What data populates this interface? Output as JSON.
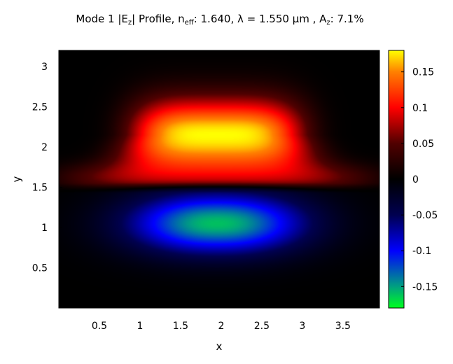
{
  "chart_data": {
    "type": "heatmap",
    "title": {
      "prefix": "Mode 1 |E",
      "prefix_sub": "z",
      "middle": "| Profile, n",
      "middle_sub": "eff",
      "suffix": ": 1.640, λ = 1.550 µm , A",
      "suffix_sub": "z",
      "end": ": 7.1%"
    },
    "xlabel": "x",
    "ylabel": "y",
    "xlim": [
      0,
      3.95
    ],
    "ylim": [
      0,
      3.2
    ],
    "xticks": [
      0.5,
      1,
      1.5,
      2,
      2.5,
      3,
      3.5
    ],
    "xtick_labels": [
      "0.5",
      "1",
      "1.5",
      "2",
      "2.5",
      "3",
      "3.5"
    ],
    "yticks": [
      0.5,
      1,
      1.5,
      2,
      2.5,
      3
    ],
    "ytick_labels": [
      "0.5",
      "1",
      "1.5",
      "2",
      "2.5",
      "3"
    ],
    "colorbar": {
      "range": [
        -0.18,
        0.18
      ],
      "ticks": [
        0.15,
        0.1,
        0.05,
        0,
        -0.05,
        -0.1,
        -0.15
      ],
      "tick_labels": [
        "0.15",
        "0.1",
        "0.05",
        "0",
        "-0.05",
        "-0.1",
        "-0.15"
      ],
      "colormap": [
        {
          "value": -0.18,
          "color": "#00ff20"
        },
        {
          "value": -0.15,
          "color": "#00a080"
        },
        {
          "value": -0.1,
          "color": "#0000ff"
        },
        {
          "value": -0.05,
          "color": "#000050"
        },
        {
          "value": 0,
          "color": "#000000"
        },
        {
          "value": 0.05,
          "color": "#500000"
        },
        {
          "value": 0.1,
          "color": "#ff0000"
        },
        {
          "value": 0.15,
          "color": "#ff8000"
        },
        {
          "value": 0.18,
          "color": "#ffff00"
        }
      ]
    },
    "field": {
      "positive_lobe": {
        "center_x": 1.95,
        "center_y": 2.15,
        "peak": 0.18,
        "x_half_width": 1.05,
        "y_extent": 0.45
      },
      "negative_lobe": {
        "center_x": 1.95,
        "center_y": 1.05,
        "peak": -0.16,
        "x_half_width": 1.1,
        "y_extent": 0.38
      },
      "side_wing_peak": 0.055,
      "node_y": 1.55
    }
  }
}
